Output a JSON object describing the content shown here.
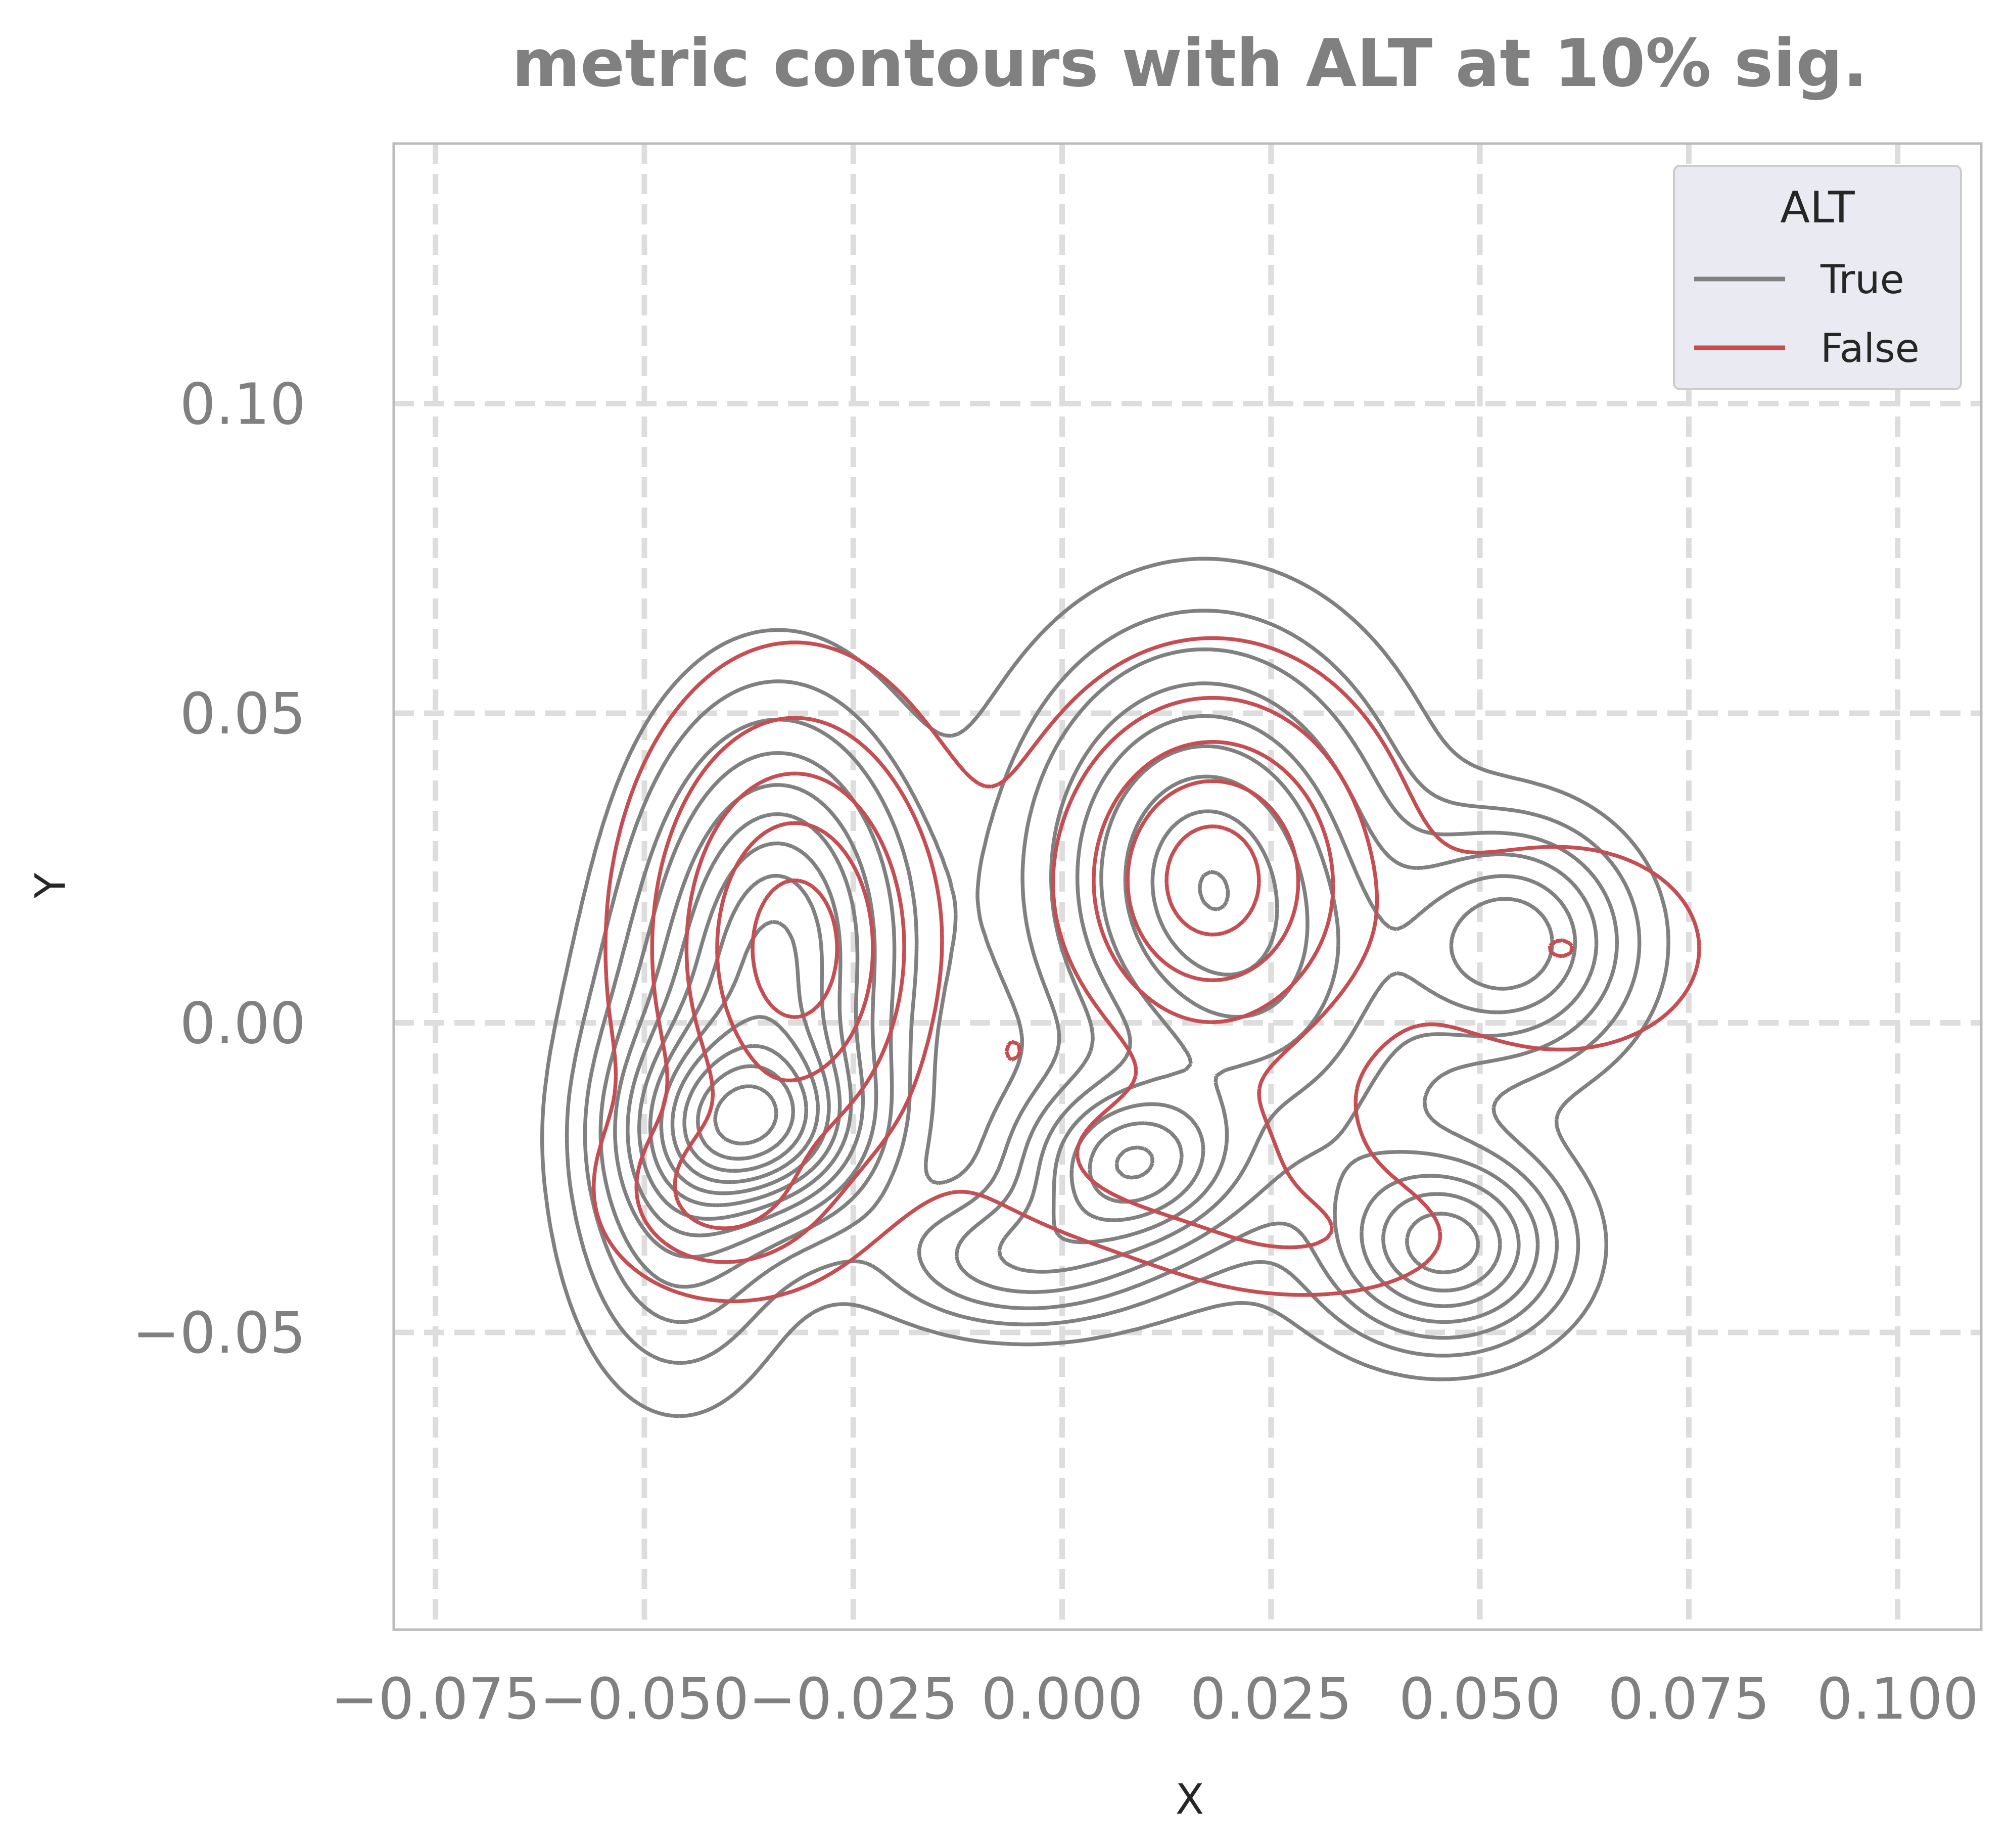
{
  "chart_data": {
    "type": "contour",
    "title": "metric contours with ALT at 10% sig.",
    "xlabel": "X",
    "ylabel": "Y",
    "xlim": [
      -0.08,
      0.11
    ],
    "ylim": [
      -0.098,
      0.142
    ],
    "xticks": [
      -0.075,
      -0.05,
      -0.025,
      0.0,
      0.025,
      0.05,
      0.075,
      0.1
    ],
    "xtick_labels": [
      "−0.075",
      "−0.050",
      "−0.025",
      "0.000",
      "0.025",
      "0.050",
      "0.075",
      "0.100"
    ],
    "yticks": [
      -0.05,
      0.0,
      0.05,
      0.1
    ],
    "ytick_labels": [
      "−0.05",
      "0.00",
      "0.05",
      "0.10"
    ],
    "grid": true,
    "legend": {
      "title": "ALT",
      "position": "top-right"
    },
    "series": [
      {
        "name": "True",
        "color": "#808080",
        "modes": [
          {
            "x": -0.034,
            "y": 0.012,
            "sx": 0.0095,
            "sy": 0.022,
            "w": 1.0
          },
          {
            "x": -0.036,
            "y": -0.017,
            "sx": 0.0085,
            "sy": 0.0095,
            "w": 0.95
          },
          {
            "x": -0.046,
            "y": -0.022,
            "sx": 0.0075,
            "sy": 0.02,
            "w": 0.55
          },
          {
            "x": 0.017,
            "y": 0.024,
            "sx": 0.013,
            "sy": 0.022,
            "w": 0.95
          },
          {
            "x": 0.008,
            "y": -0.023,
            "sx": 0.0085,
            "sy": 0.009,
            "w": 0.9
          },
          {
            "x": -0.005,
            "y": -0.038,
            "sx": 0.01,
            "sy": 0.007,
            "w": 0.45
          },
          {
            "x": 0.054,
            "y": 0.013,
            "sx": 0.0085,
            "sy": 0.0115,
            "w": 0.7
          },
          {
            "x": 0.046,
            "y": -0.036,
            "sx": 0.0085,
            "sy": 0.0095,
            "w": 0.8
          },
          {
            "x": 0.03,
            "y": -0.005,
            "sx": 0.012,
            "sy": 0.02,
            "w": 0.3
          }
        ],
        "levels": [
          0.04,
          0.09,
          0.15,
          0.22,
          0.3,
          0.38,
          0.46,
          0.54,
          0.62,
          0.7,
          0.78,
          0.86,
          0.94
        ]
      },
      {
        "name": "False",
        "color": "#c44e52",
        "modes": [
          {
            "x": -0.032,
            "y": 0.012,
            "sx": 0.011,
            "sy": 0.024,
            "w": 1.0
          },
          {
            "x": -0.042,
            "y": -0.028,
            "sx": 0.008,
            "sy": 0.009,
            "w": 0.45
          },
          {
            "x": 0.018,
            "y": 0.023,
            "sx": 0.012,
            "sy": 0.019,
            "w": 1.0
          },
          {
            "x": 0.012,
            "y": -0.022,
            "sx": 0.014,
            "sy": 0.009,
            "w": 0.35
          },
          {
            "x": 0.06,
            "y": 0.012,
            "sx": 0.012,
            "sy": 0.012,
            "w": 0.3
          },
          {
            "x": 0.03,
            "y": -0.035,
            "sx": 0.012,
            "sy": 0.007,
            "w": 0.25
          }
        ],
        "levels": [
          0.12,
          0.3,
          0.5,
          0.7,
          0.9
        ]
      }
    ]
  }
}
